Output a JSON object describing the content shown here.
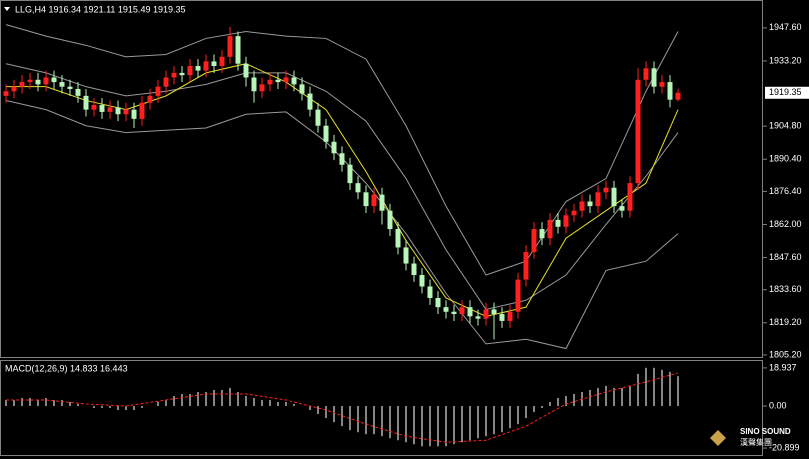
{
  "chart_data": [
    {
      "type": "candlestick",
      "title": "LLG,H4  1916.34 1921.11 1915.49 1919.35",
      "up_color": "#ff2020",
      "down_color": "#b8f5b8",
      "open": [
        1918,
        1920,
        1922,
        1924,
        1925,
        1923,
        1926,
        1924,
        1922,
        1921,
        1918,
        1912,
        1914,
        1911,
        1913,
        1910,
        1912,
        1908,
        1915,
        1918,
        1922,
        1926,
        1928,
        1927,
        1931,
        1929,
        1933,
        1931,
        1935,
        1944,
        1932,
        1926,
        1920,
        1923,
        1925,
        1924,
        1926,
        1923,
        1919,
        1912,
        1905,
        1898,
        1893,
        1888,
        1880,
        1876,
        1870,
        1875,
        1868,
        1860,
        1852,
        1845,
        1840,
        1835,
        1830,
        1826,
        1824,
        1823,
        1826,
        1822,
        1821,
        1825,
        1823,
        1820,
        1824,
        1838,
        1850,
        1860,
        1856,
        1864,
        1861,
        1866,
        1868,
        1872,
        1870,
        1876,
        1878,
        1870,
        1868,
        1880,
        1925,
        1930,
        1922,
        1924,
        1916.34
      ],
      "high": [
        1923,
        1925,
        1927,
        1928,
        1928,
        1929,
        1929,
        1927,
        1925,
        1924,
        1921,
        1917,
        1917,
        1916,
        1916,
        1915,
        1915,
        1918,
        1921,
        1925,
        1929,
        1931,
        1931,
        1934,
        1934,
        1936,
        1936,
        1938,
        1948,
        1946,
        1935,
        1929,
        1926,
        1928,
        1928,
        1929,
        1929,
        1926,
        1922,
        1915,
        1908,
        1901,
        1896,
        1891,
        1883,
        1879,
        1878,
        1878,
        1871,
        1863,
        1855,
        1848,
        1843,
        1838,
        1833,
        1829,
        1827,
        1829,
        1829,
        1825,
        1828,
        1828,
        1826,
        1827,
        1841,
        1853,
        1863,
        1863,
        1867,
        1867,
        1869,
        1871,
        1875,
        1875,
        1879,
        1881,
        1881,
        1873,
        1883,
        1930,
        1933,
        1933,
        1927,
        1927,
        1921.11
      ],
      "low": [
        1915,
        1917,
        1919,
        1921,
        1920,
        1920,
        1921,
        1919,
        1918,
        1915,
        1909,
        1909,
        1908,
        1908,
        1907,
        1907,
        1904,
        1905,
        1912,
        1915,
        1919,
        1923,
        1924,
        1924,
        1926,
        1926,
        1928,
        1928,
        1932,
        1929,
        1922,
        1915,
        1917,
        1920,
        1921,
        1921,
        1920,
        1916,
        1909,
        1902,
        1895,
        1890,
        1885,
        1877,
        1873,
        1867,
        1867,
        1862,
        1857,
        1849,
        1842,
        1837,
        1832,
        1827,
        1823,
        1821,
        1820,
        1820,
        1819,
        1818,
        1818,
        1812,
        1817,
        1817,
        1821,
        1835,
        1847,
        1853,
        1853,
        1858,
        1858,
        1863,
        1865,
        1867,
        1867,
        1873,
        1867,
        1865,
        1865,
        1877,
        1922,
        1919,
        1919,
        1913,
        1915.49
      ],
      "close": [
        1920,
        1922,
        1924,
        1925,
        1923,
        1926,
        1924,
        1922,
        1921,
        1918,
        1912,
        1914,
        1911,
        1913,
        1910,
        1912,
        1908,
        1915,
        1918,
        1922,
        1926,
        1928,
        1927,
        1931,
        1929,
        1933,
        1931,
        1935,
        1944,
        1932,
        1926,
        1920,
        1923,
        1925,
        1924,
        1926,
        1923,
        1919,
        1912,
        1905,
        1898,
        1893,
        1888,
        1880,
        1876,
        1870,
        1875,
        1868,
        1860,
        1852,
        1845,
        1840,
        1835,
        1830,
        1826,
        1824,
        1823,
        1826,
        1822,
        1821,
        1825,
        1823,
        1820,
        1824,
        1838,
        1850,
        1860,
        1856,
        1864,
        1861,
        1866,
        1868,
        1872,
        1870,
        1876,
        1878,
        1870,
        1868,
        1880,
        1925,
        1930,
        1922,
        1924,
        1916.34,
        1919.35
      ],
      "overlays": [
        {
          "color": "#9a9a9a",
          "x": [
            0,
            5,
            10,
            15,
            20,
            25,
            30,
            35,
            40,
            45,
            50,
            55,
            60,
            65,
            70,
            75,
            80,
            84
          ],
          "values": [
            1949,
            1944,
            1940,
            1935,
            1936,
            1943,
            1946,
            1944,
            1943,
            1934,
            1905,
            1870,
            1840,
            1846,
            1872,
            1882,
            1920,
            1946
          ]
        },
        {
          "color": "#9a9a9a",
          "x": [
            0,
            5,
            10,
            15,
            20,
            25,
            30,
            35,
            40,
            45,
            50,
            55,
            60,
            65,
            70,
            75,
            80,
            84
          ],
          "values": [
            1932,
            1928,
            1922,
            1918,
            1920,
            1923,
            1928,
            1928,
            1920,
            1907,
            1882,
            1851,
            1825,
            1829,
            1840,
            1862,
            1883,
            1902
          ]
        },
        {
          "color": "#9a9a9a",
          "x": [
            0,
            5,
            10,
            15,
            20,
            25,
            30,
            35,
            40,
            45,
            50,
            55,
            60,
            65,
            70,
            75,
            80,
            84
          ],
          "values": [
            1916,
            1912,
            1905,
            1902,
            1903,
            1904,
            1910,
            1911,
            1898,
            1880,
            1858,
            1832,
            1810,
            1812,
            1808,
            1842,
            1846,
            1858
          ]
        },
        {
          "color": "#e8e020",
          "x": [
            0,
            5,
            10,
            15,
            20,
            25,
            30,
            35,
            40,
            45,
            50,
            55,
            60,
            65,
            70,
            75,
            80,
            84
          ],
          "values": [
            1922,
            1922,
            1916,
            1912,
            1918,
            1928,
            1932,
            1924,
            1912,
            1885,
            1855,
            1830,
            1822,
            1826,
            1856,
            1868,
            1880,
            1912
          ]
        }
      ],
      "last_price": 1919.35,
      "ylim": [
        1804.3,
        1959.3
      ],
      "yticks": [
        {
          "value": 1947.6,
          "label": "1947.60"
        },
        {
          "value": 1933.2,
          "label": "1933.20"
        },
        {
          "value": 1904.8,
          "label": "1904.80"
        },
        {
          "value": 1890.4,
          "label": "1890.40"
        },
        {
          "value": 1876.4,
          "label": "1876.40"
        },
        {
          "value": 1862,
          "label": "1862.00"
        },
        {
          "value": 1847.6,
          "label": "1847.60"
        },
        {
          "value": 1833.6,
          "label": "1833.60"
        },
        {
          "value": 1819.2,
          "label": "1819.20"
        },
        {
          "value": 1805.2,
          "label": "1805.20"
        }
      ]
    },
    {
      "type": "macd",
      "title": "MACD(12,26,9) 14.833 16.443",
      "color": "#e0e0e0",
      "signal_color": "#ff2020",
      "values": [
        3,
        3,
        4,
        4,
        3,
        4,
        3,
        3,
        2,
        1,
        0,
        -1,
        -1,
        -1,
        -2,
        -2,
        -2,
        -1,
        0,
        2,
        3,
        5,
        6,
        6,
        7,
        7,
        8,
        8,
        9,
        7,
        5,
        4,
        3,
        3,
        2,
        2,
        1,
        0,
        -2,
        -4,
        -6,
        -8,
        -10,
        -12,
        -13,
        -14,
        -14,
        -15,
        -16,
        -17,
        -18,
        -19,
        -20,
        -20,
        -20,
        -20,
        -19,
        -18,
        -17,
        -16,
        -15,
        -14,
        -13,
        -11,
        -9,
        -6,
        -3,
        -1,
        2,
        4,
        5,
        6,
        7,
        8,
        9,
        10,
        9,
        9,
        10,
        16,
        19,
        19,
        18,
        17,
        14.833
      ],
      "signal": {
        "x": [
          0,
          5,
          10,
          15,
          20,
          25,
          30,
          35,
          40,
          45,
          50,
          55,
          60,
          65,
          70,
          75,
          80,
          84
        ],
        "values": [
          3,
          3,
          1,
          0,
          3,
          6,
          6,
          3,
          -2,
          -9,
          -15,
          -18,
          -17,
          -10,
          1,
          7,
          12,
          16.443
        ]
      },
      "ylim": [
        -24.33,
        22.37
      ],
      "yticks": [
        18.937,
        {
          "value": 0,
          "label": "0.00"
        },
        -20.899
      ]
    },
    {
      "logo": "SINO SOUND",
      "logo_sub": "漢聲集團"
    }
  ]
}
